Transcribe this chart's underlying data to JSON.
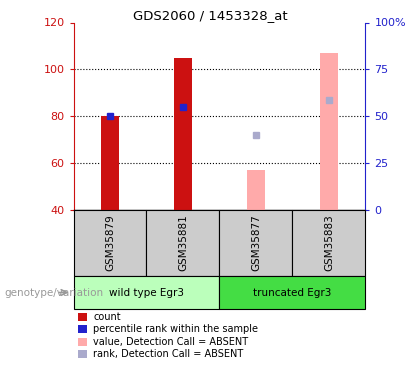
{
  "title": "GDS2060 / 1453328_at",
  "samples": [
    "GSM35879",
    "GSM35881",
    "GSM35877",
    "GSM35883"
  ],
  "ylim_left": [
    40,
    120
  ],
  "yticks_left": [
    40,
    60,
    80,
    100,
    120
  ],
  "right_tick_labels": [
    "0",
    "25",
    "50",
    "75",
    "100%"
  ],
  "bars_present": {
    "GSM35879": {
      "count": 80,
      "rank": 80,
      "absent_value": null,
      "absent_rank": null
    },
    "GSM35881": {
      "count": 105,
      "rank": 84,
      "absent_value": null,
      "absent_rank": null
    },
    "GSM35877": {
      "count": null,
      "rank": null,
      "absent_value": 57,
      "absent_rank": 72
    },
    "GSM35883": {
      "count": null,
      "rank": null,
      "absent_value": 107,
      "absent_rank": 87
    }
  },
  "colors": {
    "count_bar": "#cc1111",
    "rank_marker": "#2222cc",
    "absent_bar": "#ffaaaa",
    "absent_rank_marker": "#aaaacc",
    "left_axis_color": "#cc1111",
    "right_axis_color": "#2222cc",
    "group_box_1": "#bbffbb",
    "group_box_2": "#44dd44",
    "sample_box": "#cccccc",
    "genotype_label": "#999999"
  },
  "legend_labels": [
    "count",
    "percentile rank within the sample",
    "value, Detection Call = ABSENT",
    "rank, Detection Call = ABSENT"
  ],
  "legend_colors": [
    "#cc1111",
    "#2222cc",
    "#ffaaaa",
    "#aaaacc"
  ],
  "group_label": "genotype/variation"
}
